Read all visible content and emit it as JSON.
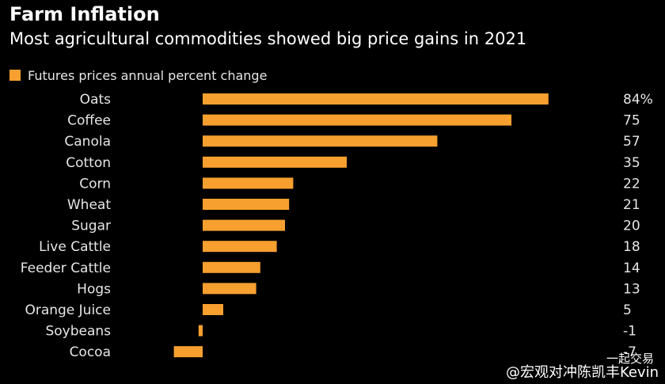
{
  "title": "Farm Inflation",
  "subtitle": "Most agricultural commodities showed big price gains in 2021",
  "legend_label": "Futures prices annual percent change",
  "watermark": "@宏观对冲陈凯丰Kevin",
  "watermark_sub": "一起交易",
  "colors": {
    "background": "#000000",
    "bar": "#f7a030",
    "text": "#ffffff"
  },
  "chart_data": {
    "type": "bar",
    "orientation": "horizontal",
    "title": "Farm Inflation",
    "subtitle": "Most agricultural commodities showed big price gains in 2021",
    "legend": [
      "Futures prices annual percent change"
    ],
    "legend_position": "top-left",
    "unit": "%",
    "grid": false,
    "categories": [
      "Oats",
      "Coffee",
      "Canola",
      "Cotton",
      "Corn",
      "Wheat",
      "Sugar",
      "Live Cattle",
      "Feeder Cattle",
      "Hogs",
      "Orange Juice",
      "Soybeans",
      "Cocoa"
    ],
    "values": [
      84,
      75,
      57,
      35,
      22,
      21,
      20,
      18,
      14,
      13,
      5,
      -1,
      -7
    ],
    "value_labels": [
      "84%",
      "75",
      "57",
      "35",
      "22",
      "21",
      "20",
      "18",
      "14",
      "13",
      "5",
      "-1",
      "-7"
    ],
    "xlim": [
      -7,
      84
    ]
  }
}
